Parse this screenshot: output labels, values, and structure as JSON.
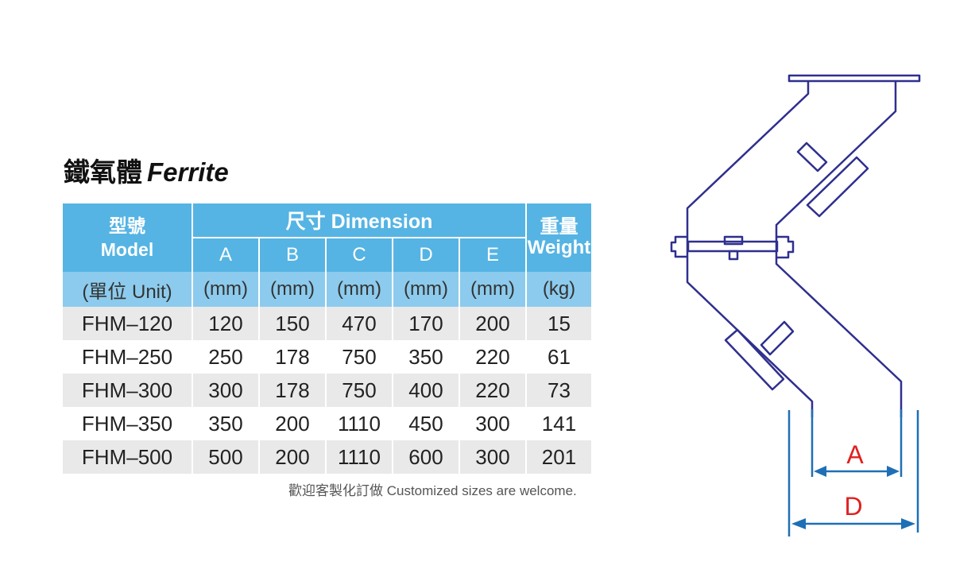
{
  "title": {
    "zh": "鐵氧體",
    "en": "Ferrite"
  },
  "table": {
    "header": {
      "model_zh": "型號",
      "model_en": "Model",
      "dimension": "尺寸 Dimension",
      "weight_zh": "重量",
      "weight_en": "Weight",
      "columns": [
        "A",
        "B",
        "C",
        "D",
        "E"
      ]
    },
    "units": [
      "(單位 Unit)",
      "(mm)",
      "(mm)",
      "(mm)",
      "(mm)",
      "(mm)",
      "(kg)"
    ],
    "rows": [
      [
        "FHM–120",
        "120",
        "150",
        "470",
        "170",
        "200",
        "15"
      ],
      [
        "FHM–250",
        "250",
        "178",
        "750",
        "350",
        "220",
        "61"
      ],
      [
        "FHM–300",
        "300",
        "178",
        "750",
        "400",
        "220",
        "73"
      ],
      [
        "FHM–350",
        "350",
        "200",
        "1110",
        "450",
        "300",
        "141"
      ],
      [
        "FHM–500",
        "500",
        "200",
        "1110",
        "600",
        "300",
        "201"
      ]
    ]
  },
  "note": "歡迎客製化訂做 Customized sizes are welcome.",
  "diagram": {
    "labels": {
      "a": "A",
      "d": "D"
    },
    "colors": {
      "outline": "#2f2f8f",
      "dimension": "#1e6fb5",
      "label": "#e02020"
    }
  }
}
